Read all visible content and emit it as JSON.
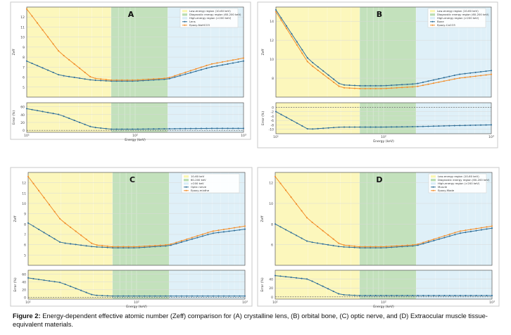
{
  "caption": {
    "label": "Figure 2:",
    "text": "Energy-dependent effective atomic number (Zeff) comparison for (A) crystalline lens, (B) orbital bone, (C) optic nerve, and (D) Extraocular muscle tissue-equivalent materials."
  },
  "colors": {
    "tissue": "#2f6f99",
    "material": "#f28e2b",
    "low_region": "#fbf6b0",
    "diag_region": "#b9dcb0",
    "high_region": "#d9edf7"
  },
  "chart_data": [
    {
      "panel": "A",
      "type": "line",
      "x_scale": "log",
      "xlim": [
        10,
        1000
      ],
      "xlabel": "Energy (keV)",
      "top": {
        "ylabel": "Zeff",
        "ylim": [
          4,
          13
        ],
        "yticks": [
          5,
          6,
          7,
          8,
          9,
          10,
          11,
          12
        ],
        "legend": [
          "Low-energy region (10-60 keV)",
          "Diagnostic energy region (60-200 keV)",
          "High-energy region (>200 keV)",
          "Lens",
          "Epoxy-NaHCO3"
        ],
        "series": [
          {
            "name": "Lens",
            "x": [
              10,
              20,
              40,
              60,
              100,
              200,
              500,
              1000
            ],
            "y": [
              7.6,
              6.2,
              5.7,
              5.6,
              5.6,
              5.8,
              7.0,
              7.6
            ]
          },
          {
            "name": "Epoxy-NaHCO3",
            "x": [
              10,
              20,
              40,
              60,
              100,
              200,
              500,
              1000
            ],
            "y": [
              12.8,
              8.5,
              5.9,
              5.7,
              5.7,
              5.9,
              7.3,
              7.9
            ]
          }
        ]
      },
      "bottom": {
        "ylabel": "Error (%)",
        "ylim": [
          -5,
          70
        ],
        "yticks": [
          0,
          20,
          40,
          60
        ],
        "series": [
          {
            "name": "",
            "x": [
              10,
              20,
              40,
              60,
              100,
              200,
              500,
              1000
            ],
            "y": [
              55,
              40,
              8,
              3,
              3,
              4,
              5,
              5
            ]
          }
        ]
      }
    },
    {
      "panel": "B",
      "type": "line",
      "x_scale": "log",
      "xlim": [
        10,
        1000
      ],
      "xlabel": "Energy (keV)",
      "top": {
        "ylabel": "Zeff",
        "ylim": [
          6,
          15.5
        ],
        "yticks": [
          8,
          10,
          12,
          14
        ],
        "legend": [
          "Low-energy region (10-60 keV)",
          "Diagnostic energy region (60-200 keV)",
          "High-energy region (>200 keV)",
          "Bone",
          "Epoxy-CaCO3"
        ],
        "series": [
          {
            "name": "Bone",
            "x": [
              10,
              20,
              40,
              60,
              100,
              200,
              500,
              1000
            ],
            "y": [
              15.2,
              10.0,
              7.3,
              7.2,
              7.2,
              7.4,
              8.4,
              8.8
            ]
          },
          {
            "name": "Epoxy-CaCO3",
            "x": [
              10,
              20,
              40,
              60,
              100,
              200,
              500,
              1000
            ],
            "y": [
              15.0,
              9.6,
              7.0,
              6.9,
              6.9,
              7.1,
              8.0,
              8.4
            ]
          }
        ]
      },
      "bottom": {
        "ylabel": "Error (%)",
        "ylim": [
          -12,
          2
        ],
        "yticks": [
          0,
          -2,
          -4,
          -6,
          -8,
          -10
        ],
        "series": [
          {
            "name": "",
            "x": [
              10,
              20,
              40,
              60,
              100,
              200,
              500,
              1000
            ],
            "y": [
              -2,
              -10,
              -9,
              -9,
              -9,
              -8.8,
              -8.3,
              -8
            ]
          }
        ]
      }
    },
    {
      "panel": "C",
      "type": "line",
      "x_scale": "log",
      "xlim": [
        10,
        1000
      ],
      "xlabel": "Energy (keV)",
      "top": {
        "ylabel": "Zeff",
        "ylim": [
          4,
          13
        ],
        "yticks": [
          5,
          6,
          7,
          8,
          9,
          10,
          11,
          12
        ],
        "legend": [
          "10-60 keV",
          "60-200 keV",
          ">200 keV",
          "Optic nerve",
          "Epoxy-mixthe"
        ],
        "series": [
          {
            "name": "Optic nerve",
            "x": [
              10,
              20,
              40,
              60,
              100,
              200,
              500,
              1000
            ],
            "y": [
              8.1,
              6.2,
              5.8,
              5.7,
              5.7,
              5.9,
              7.1,
              7.5
            ]
          },
          {
            "name": "Epoxy-mixthe",
            "x": [
              10,
              20,
              40,
              60,
              100,
              200,
              500,
              1000
            ],
            "y": [
              12.6,
              8.4,
              6.0,
              5.8,
              5.8,
              6.0,
              7.3,
              7.8
            ]
          }
        ]
      },
      "bottom": {
        "ylabel": "Error (%)",
        "ylim": [
          -5,
          70
        ],
        "yticks": [
          0,
          20,
          40,
          60
        ],
        "series": [
          {
            "name": "",
            "x": [
              10,
              20,
              40,
              60,
              100,
              200,
              500,
              1000
            ],
            "y": [
              50,
              38,
              5,
              3,
              3,
              3,
              3,
              3
            ]
          }
        ]
      }
    },
    {
      "panel": "D",
      "type": "line",
      "x_scale": "log",
      "xlim": [
        10,
        1000
      ],
      "xlabel": "Energy (keV)",
      "top": {
        "ylabel": "Zeff",
        "ylim": [
          4,
          13
        ],
        "yticks": [
          6,
          8,
          10,
          12
        ],
        "legend": [
          "Low-energy region (10-60 keV)",
          "Diagnostic energy region (60-200 keV)",
          "High-energy region (>200 keV)",
          "Muscle",
          "Epoxy-Made"
        ],
        "series": [
          {
            "name": "Muscle",
            "x": [
              10,
              20,
              40,
              60,
              100,
              200,
              500,
              1000
            ],
            "y": [
              8.0,
              6.3,
              5.8,
              5.7,
              5.7,
              5.9,
              7.1,
              7.6
            ]
          },
          {
            "name": "Epoxy-Made",
            "x": [
              10,
              20,
              40,
              60,
              100,
              200,
              500,
              1000
            ],
            "y": [
              12.6,
              8.5,
              6.0,
              5.8,
              5.8,
              6.0,
              7.3,
              7.8
            ]
          }
        ]
      },
      "bottom": {
        "ylabel": "Error (%)",
        "ylim": [
          -5,
          60
        ],
        "yticks": [
          0,
          20,
          40
        ],
        "series": [
          {
            "name": "",
            "x": [
              10,
              20,
              40,
              60,
              100,
              200,
              500,
              1000
            ],
            "y": [
              48,
              40,
              5,
              3,
              3,
              3,
              3,
              3
            ]
          }
        ]
      }
    }
  ]
}
